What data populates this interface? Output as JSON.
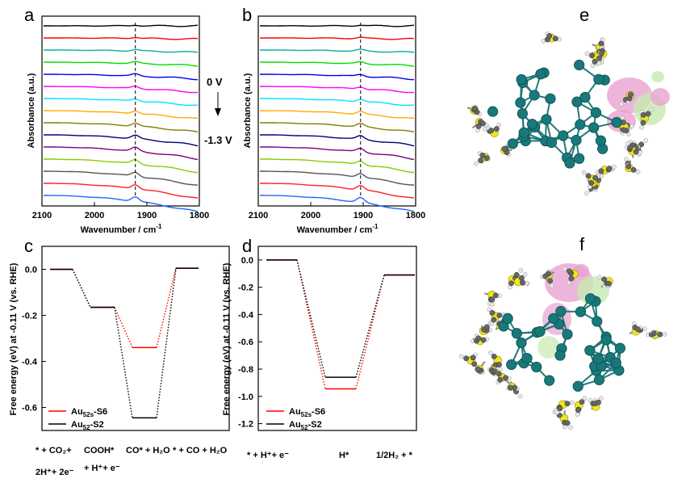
{
  "panels": {
    "a": "a",
    "b": "b",
    "c": "c",
    "d": "d",
    "e": "e",
    "f": "f"
  },
  "potential_annotation": {
    "top": "0 V",
    "bottom": "-1.3 V"
  },
  "chart_data": [
    {
      "id": "a",
      "type": "line",
      "xlabel": "Wavenumber / cm",
      "xlabel_sup": "-1",
      "ylabel": "Absorbance (a.u.)",
      "xlim": [
        2100,
        1800
      ],
      "xticks": [
        "2100",
        "2000",
        "1900",
        "1800"
      ],
      "dashed_marker": 1922,
      "series_colors": [
        "#000000",
        "#ff0000",
        "#00b0a0",
        "#00dd00",
        "#0000ee",
        "#ff00ff",
        "#00e0ff",
        "#ffaa00",
        "#808000",
        "#00007f",
        "#800080",
        "#88cc00",
        "#555555",
        "#ff2020",
        "#2266ff"
      ]
    },
    {
      "id": "b",
      "type": "line",
      "xlabel": "Wavenumber / cm",
      "xlabel_sup": "-1",
      "ylabel": "Absorbance (a.u.)",
      "xlim": [
        2100,
        1800
      ],
      "xticks": [
        "2100",
        "2000",
        "1900",
        "1800"
      ],
      "dashed_marker": 1905,
      "series_colors": [
        "#000000",
        "#ff0000",
        "#00b0a0",
        "#00dd00",
        "#0000ee",
        "#ff00ff",
        "#00e0ff",
        "#ffaa00",
        "#808000",
        "#00007f",
        "#800080",
        "#88cc00",
        "#555555",
        "#ff2020",
        "#2266ff"
      ]
    },
    {
      "id": "c",
      "type": "line",
      "ylabel": "Free energy (eV) at -0.11 V (vs. RHE)",
      "ylim": [
        -0.7,
        0.1
      ],
      "yticks": [
        "0.0",
        "-0.2",
        "-0.4",
        "-0.6"
      ],
      "ytick_values": [
        0.0,
        -0.2,
        -0.4,
        -0.6
      ],
      "categories": [
        [
          "* + CO₂+",
          "2H⁺+ 2e⁻"
        ],
        [
          "COOH*",
          "+ H⁺+ e⁻"
        ],
        [
          "CO* + H₂O"
        ],
        [
          "* + CO + H₂O"
        ]
      ],
      "series": [
        {
          "name": "Au52s-S6",
          "name_main": "Au",
          "name_sub": "52s",
          "name_suffix": "-S6",
          "color": "#ff0000",
          "values": [
            0.0,
            -0.165,
            -0.34,
            0.005
          ]
        },
        {
          "name": "Au52-S2",
          "name_main": "Au",
          "name_sub": "52",
          "name_suffix": "-S2",
          "color": "#000000",
          "values": [
            0.0,
            -0.165,
            -0.645,
            0.005
          ]
        }
      ]
    },
    {
      "id": "d",
      "type": "line",
      "ylabel": "Free energy (eV) at -0.11 V (vs. RHE)",
      "ylim": [
        -1.25,
        0.1
      ],
      "yticks": [
        "0.0",
        "-0.2",
        "-0.4",
        "-0.6",
        "-0.8",
        "-1.0",
        "-1.2"
      ],
      "ytick_values": [
        0.0,
        -0.2,
        -0.4,
        -0.6,
        -0.8,
        -1.0,
        -1.2
      ],
      "categories": [
        [
          "* + H⁺+ e⁻"
        ],
        [
          "H*"
        ],
        [
          "1/2H₂ + *"
        ]
      ],
      "series": [
        {
          "name": "Au52s-S6",
          "name_main": "Au",
          "name_sub": "52s",
          "name_suffix": "-S6",
          "color": "#ff0000",
          "values": [
            0.0,
            -0.945,
            -0.11
          ]
        },
        {
          "name": "Au52-S2",
          "name_main": "Au",
          "name_sub": "52",
          "name_suffix": "-S2",
          "color": "#000000",
          "values": [
            0.0,
            -0.86,
            -0.11
          ]
        }
      ]
    }
  ]
}
